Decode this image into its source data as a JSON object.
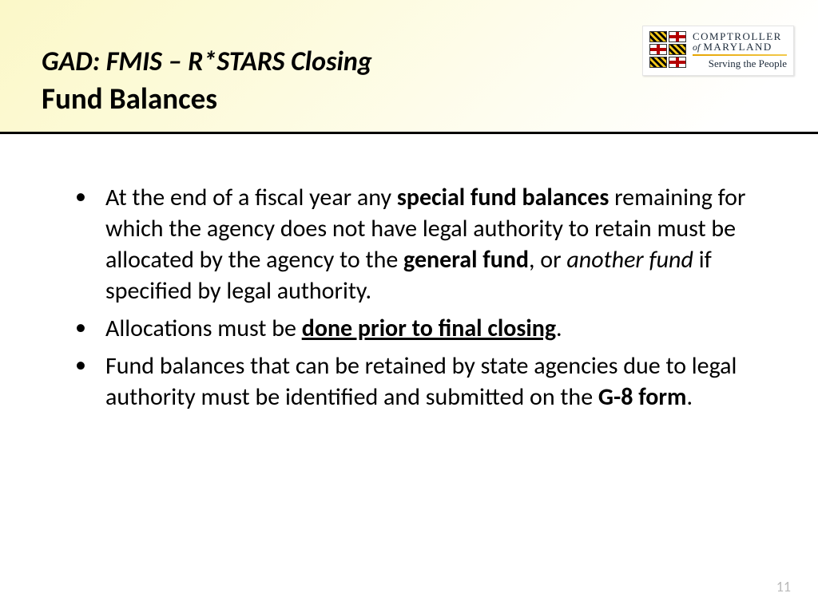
{
  "colors": {
    "header_gradient_from": "#fbf8c8",
    "header_gradient_mid": "#fdfbe0",
    "header_gradient_to": "#ffffff",
    "header_rule": "#000000",
    "text": "#000000",
    "page_number": "#b9b9b9",
    "logo_navy": "#1c2a3a",
    "logo_gold_1": "#e6a400",
    "logo_gold_2": "#f2c94c",
    "md_red": "#b30000",
    "md_gold": "#f2c200"
  },
  "typography": {
    "title_line1_pt": 34,
    "title_line2_pt": 37,
    "body_pt": 30,
    "pagenum_pt": 18,
    "title_line1_style": "bold italic",
    "title_line2_style": "bold",
    "line_height": 1.3
  },
  "header": {
    "line1": "GAD:  FMIS – R*STARS Closing",
    "line2": "Fund Balances"
  },
  "logo": {
    "line1": "COMPTROLLER",
    "of": "of",
    "line2": "MARYLAND",
    "tagline": "Serving the People"
  },
  "bullets": [
    {
      "runs": [
        {
          "t": "At the end of a fiscal year any "
        },
        {
          "t": "special fund balances",
          "style": "b"
        },
        {
          "t": " remaining for which the agency does not have legal authority to retain must be allocated by the agency to the "
        },
        {
          "t": "general fund",
          "style": "b"
        },
        {
          "t": ", or "
        },
        {
          "t": "another fund",
          "style": "i"
        },
        {
          "t": " if specified by legal authority."
        }
      ]
    },
    {
      "runs": [
        {
          "t": "Allocations must be "
        },
        {
          "t": "done prior to final closing",
          "style": "bu"
        },
        {
          "t": "."
        }
      ]
    },
    {
      "runs": [
        {
          "t": " Fund balances that can be retained by state agencies due to legal authority must be identified and submitted on the "
        },
        {
          "t": "G-8 form",
          "style": "b"
        },
        {
          "t": "."
        }
      ]
    }
  ],
  "page_number": "11"
}
